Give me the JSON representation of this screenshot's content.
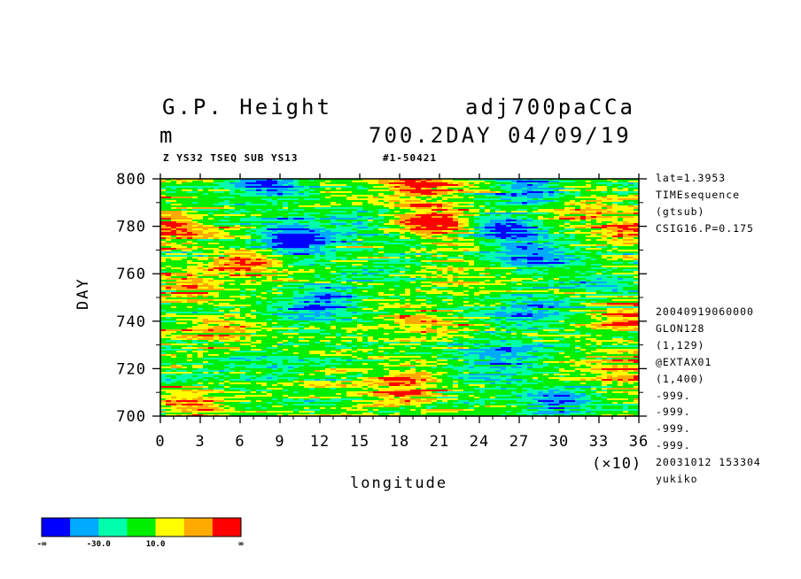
{
  "header": {
    "title_left": "G.P. Height",
    "title_right": "adj700paCCa",
    "unit": "m",
    "subtitle_right": "700.2DAY 04/09/19",
    "small_left": "Z YS32 TSEQ SUB YS13",
    "small_right": "#1-50421"
  },
  "info_upper": [
    "lat=1.3953",
    "TIMEsequence",
    "(gtsub)",
    "CSIG16.P=0.175"
  ],
  "info_lower": [
    "20040919060000",
    "GLON128",
    "(1,129)",
    "@EXTAX01",
    "(1,400)",
    "-999.",
    "-999.",
    "-999.",
    "-999.",
    "20031012 153304",
    "yukiko"
  ],
  "chart_data": {
    "type": "heatmap",
    "title": "G.P. Height",
    "xlabel": "longitude",
    "ylabel": "DAY",
    "x_multiplier_label": "(×10)",
    "xlim": [
      0,
      36
    ],
    "ylim": [
      700,
      800
    ],
    "x_ticks": [
      "0",
      "3",
      "6",
      "9",
      "12",
      "15",
      "18",
      "21",
      "24",
      "27",
      "30",
      "33",
      "36"
    ],
    "y_ticks": [
      "700",
      "720",
      "740",
      "760",
      "780",
      "800"
    ],
    "colorbar": {
      "colors": [
        "#0000ff",
        "#00aaff",
        "#00ffaa",
        "#00ee00",
        "#ffff00",
        "#ffaa00",
        "#ff0000"
      ],
      "labels": [
        "-∞",
        "-30.0",
        "10.0",
        "∞"
      ]
    },
    "features": [
      {
        "x": 8.0,
        "y": 798,
        "value": -40
      },
      {
        "x": 10.5,
        "y": 772,
        "value": -35
      },
      {
        "x": 9.5,
        "y": 778,
        "value": -30
      },
      {
        "x": 19.5,
        "y": 798,
        "value": 35
      },
      {
        "x": 20.5,
        "y": 782,
        "value": 38
      },
      {
        "x": 19.5,
        "y": 740,
        "value": 15
      },
      {
        "x": 18.5,
        "y": 712,
        "value": 30
      },
      {
        "x": 26.0,
        "y": 779,
        "value": -40
      },
      {
        "x": 28.0,
        "y": 768,
        "value": -35
      },
      {
        "x": 28.0,
        "y": 796,
        "value": -30
      },
      {
        "x": 27.5,
        "y": 743,
        "value": -25
      },
      {
        "x": 26.5,
        "y": 727,
        "value": -28
      },
      {
        "x": 30.0,
        "y": 706,
        "value": -32
      },
      {
        "x": 0.8,
        "y": 780,
        "value": 30
      },
      {
        "x": 2.0,
        "y": 755,
        "value": 22
      },
      {
        "x": 2.5,
        "y": 705,
        "value": 25
      },
      {
        "x": 35.5,
        "y": 778,
        "value": 25
      },
      {
        "x": 35.5,
        "y": 742,
        "value": 28
      },
      {
        "x": 35.0,
        "y": 720,
        "value": 20
      },
      {
        "x": 14.5,
        "y": 780,
        "value": -18
      },
      {
        "x": 13.0,
        "y": 750,
        "value": -20
      },
      {
        "x": 11.0,
        "y": 745,
        "value": -22
      },
      {
        "x": 6.5,
        "y": 765,
        "value": 28
      },
      {
        "x": 5.0,
        "y": 735,
        "value": 18
      },
      {
        "x": 9.0,
        "y": 722,
        "value": -15
      },
      {
        "x": 16.0,
        "y": 760,
        "value": -10
      },
      {
        "x": 22.0,
        "y": 760,
        "value": 12
      },
      {
        "x": 31.5,
        "y": 788,
        "value": 20
      },
      {
        "x": 33.0,
        "y": 755,
        "value": -15
      },
      {
        "x": 24.0,
        "y": 720,
        "value": -12
      }
    ]
  }
}
